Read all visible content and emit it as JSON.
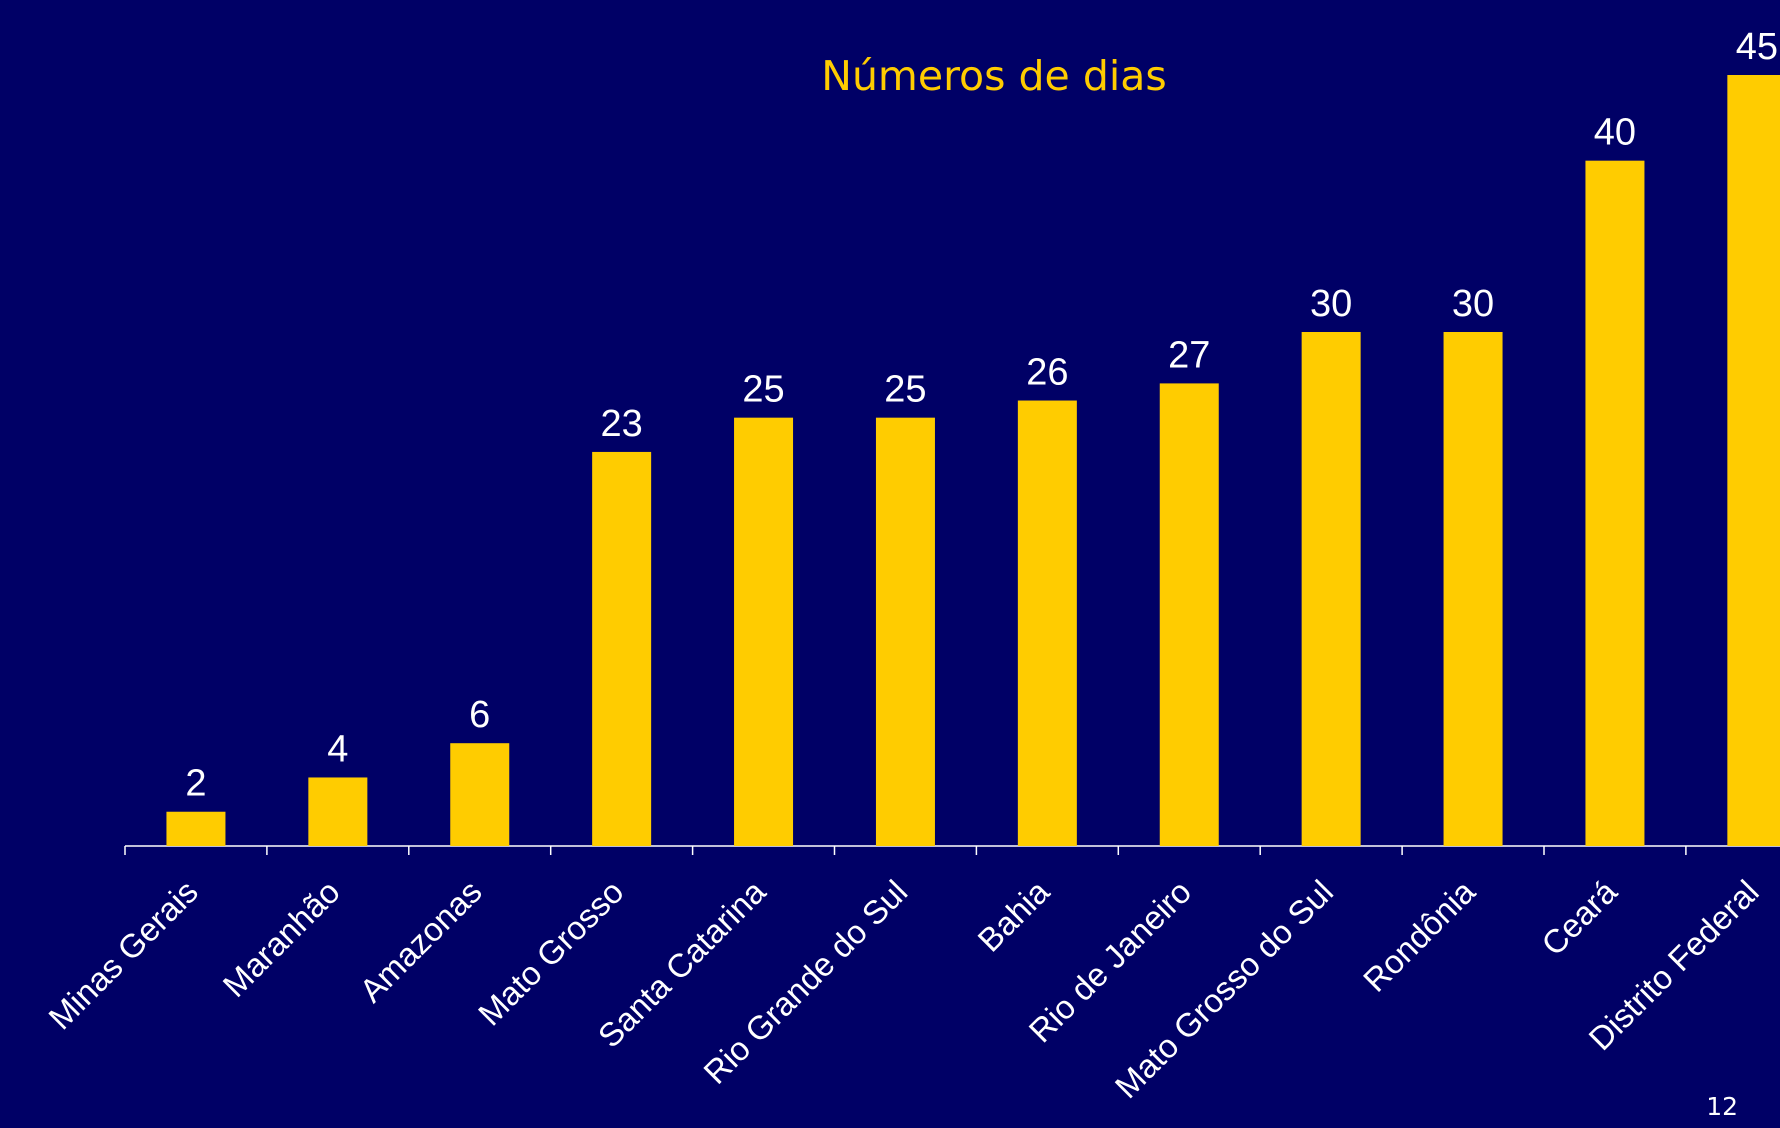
{
  "chart_data": {
    "type": "bar",
    "title": "Números de dias",
    "categories": [
      "Minas Gerais",
      "Maranhão",
      "Amazonas",
      "Mato Grosso",
      "Santa Catarina",
      "Rio Grande do Sul",
      "Bahia",
      "Rio de Janeiro",
      "Mato Grosso do Sul",
      "Rondônia",
      "Ceará",
      "Distrito Federal"
    ],
    "values": [
      2,
      4,
      6,
      23,
      25,
      25,
      26,
      27,
      30,
      30,
      40,
      45
    ],
    "color": "#ffcc00"
  },
  "page_number": "12"
}
